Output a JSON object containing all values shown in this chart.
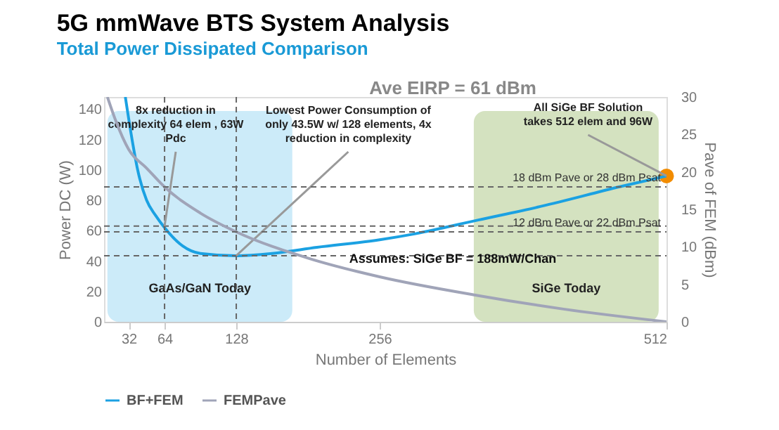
{
  "chart_data": {
    "type": "line",
    "title": "5G mmWave BTS System Analysis",
    "subtitle": "Total Power Dissipated Comparison",
    "xlabel": "Number of Elements",
    "ylabel": "Power DC (W)",
    "y2label": "Pave of FEM (dBm)",
    "xlim": [
      10,
      512
    ],
    "xticks": [
      32,
      64,
      128,
      256,
      512
    ],
    "ylim": [
      0,
      148
    ],
    "yticks": [
      0,
      20,
      40,
      60,
      80,
      100,
      120,
      140
    ],
    "y2lim": [
      0,
      30
    ],
    "y2ticks": [
      0,
      5,
      10,
      15,
      20,
      25,
      30
    ],
    "legend": "bottom",
    "series": [
      {
        "name": "BF+FEM",
        "color": "#1ba1e2",
        "x": [
          29,
          35,
          40,
          48,
          56,
          64,
          80,
          96,
          128,
          160,
          200,
          256,
          288,
          344,
          400,
          471,
          512
        ],
        "values": [
          148,
          120,
          100,
          80,
          70,
          62,
          50,
          45,
          43.5,
          45,
          49,
          54,
          58,
          67,
          76,
          89,
          96
        ]
      },
      {
        "name": "FEMPave",
        "color": "#a0a4b8",
        "axis": "y2",
        "x": [
          13,
          20,
          32,
          48,
          64,
          96,
          128,
          192,
          256,
          344,
          420,
          512
        ],
        "values": [
          30,
          27,
          23,
          20.5,
          18,
          14.5,
          12,
          8.5,
          6,
          3.5,
          1.7,
          0
        ]
      },
      {
        "type": "scatter",
        "color": "#f28c00",
        "x": [
          512
        ],
        "values": [
          96
        ]
      }
    ],
    "ref_lines": [
      {
        "axis": "y2",
        "value": 18,
        "label": "18 dBm Pave or 28 dBm Psat",
        "color": "#666666",
        "line_style": "dashed"
      },
      {
        "axis": "y2",
        "value": 12,
        "label": "12 dBm Pave or 22 dBm Psat",
        "color": "#666666",
        "line_style": "dashed"
      },
      {
        "axis": "x",
        "value": 64,
        "color": "#666666",
        "line_style": "dashed"
      },
      {
        "axis": "x",
        "value": 128,
        "color": "#666666",
        "line_style": "dashed"
      },
      {
        "axis": "y",
        "value": 63,
        "color": "#666666",
        "line_style": "dashed"
      },
      {
        "axis": "y",
        "value": 43.5,
        "color": "#666666",
        "line_style": "dashed"
      }
    ],
    "bands": [
      {
        "axis": "x",
        "from": 13,
        "to": 178,
        "label": "GaAs/GaN Today",
        "color": "#bfe6f7"
      },
      {
        "axis": "x",
        "from": 340,
        "to": 505,
        "label": "SiGe Today",
        "color": "#c9dbb0"
      }
    ],
    "annotations": [
      "Ave EIRP = 61 dBm",
      "Assumes: SiGe BF = 188mW/Chan",
      {
        "text": "8x reduction in complexity 64 elem , 63W Pdc",
        "x": 64,
        "y": 63
      },
      {
        "text": "Lowest Power Consumption of only 43.5W w/ 128 elements, 4x reduction in complexity",
        "x": 128,
        "y": 43.5
      },
      {
        "text": "All SiGe BF Solution takes 512 elem and 96W",
        "x": 512,
        "y": 96
      }
    ]
  }
}
